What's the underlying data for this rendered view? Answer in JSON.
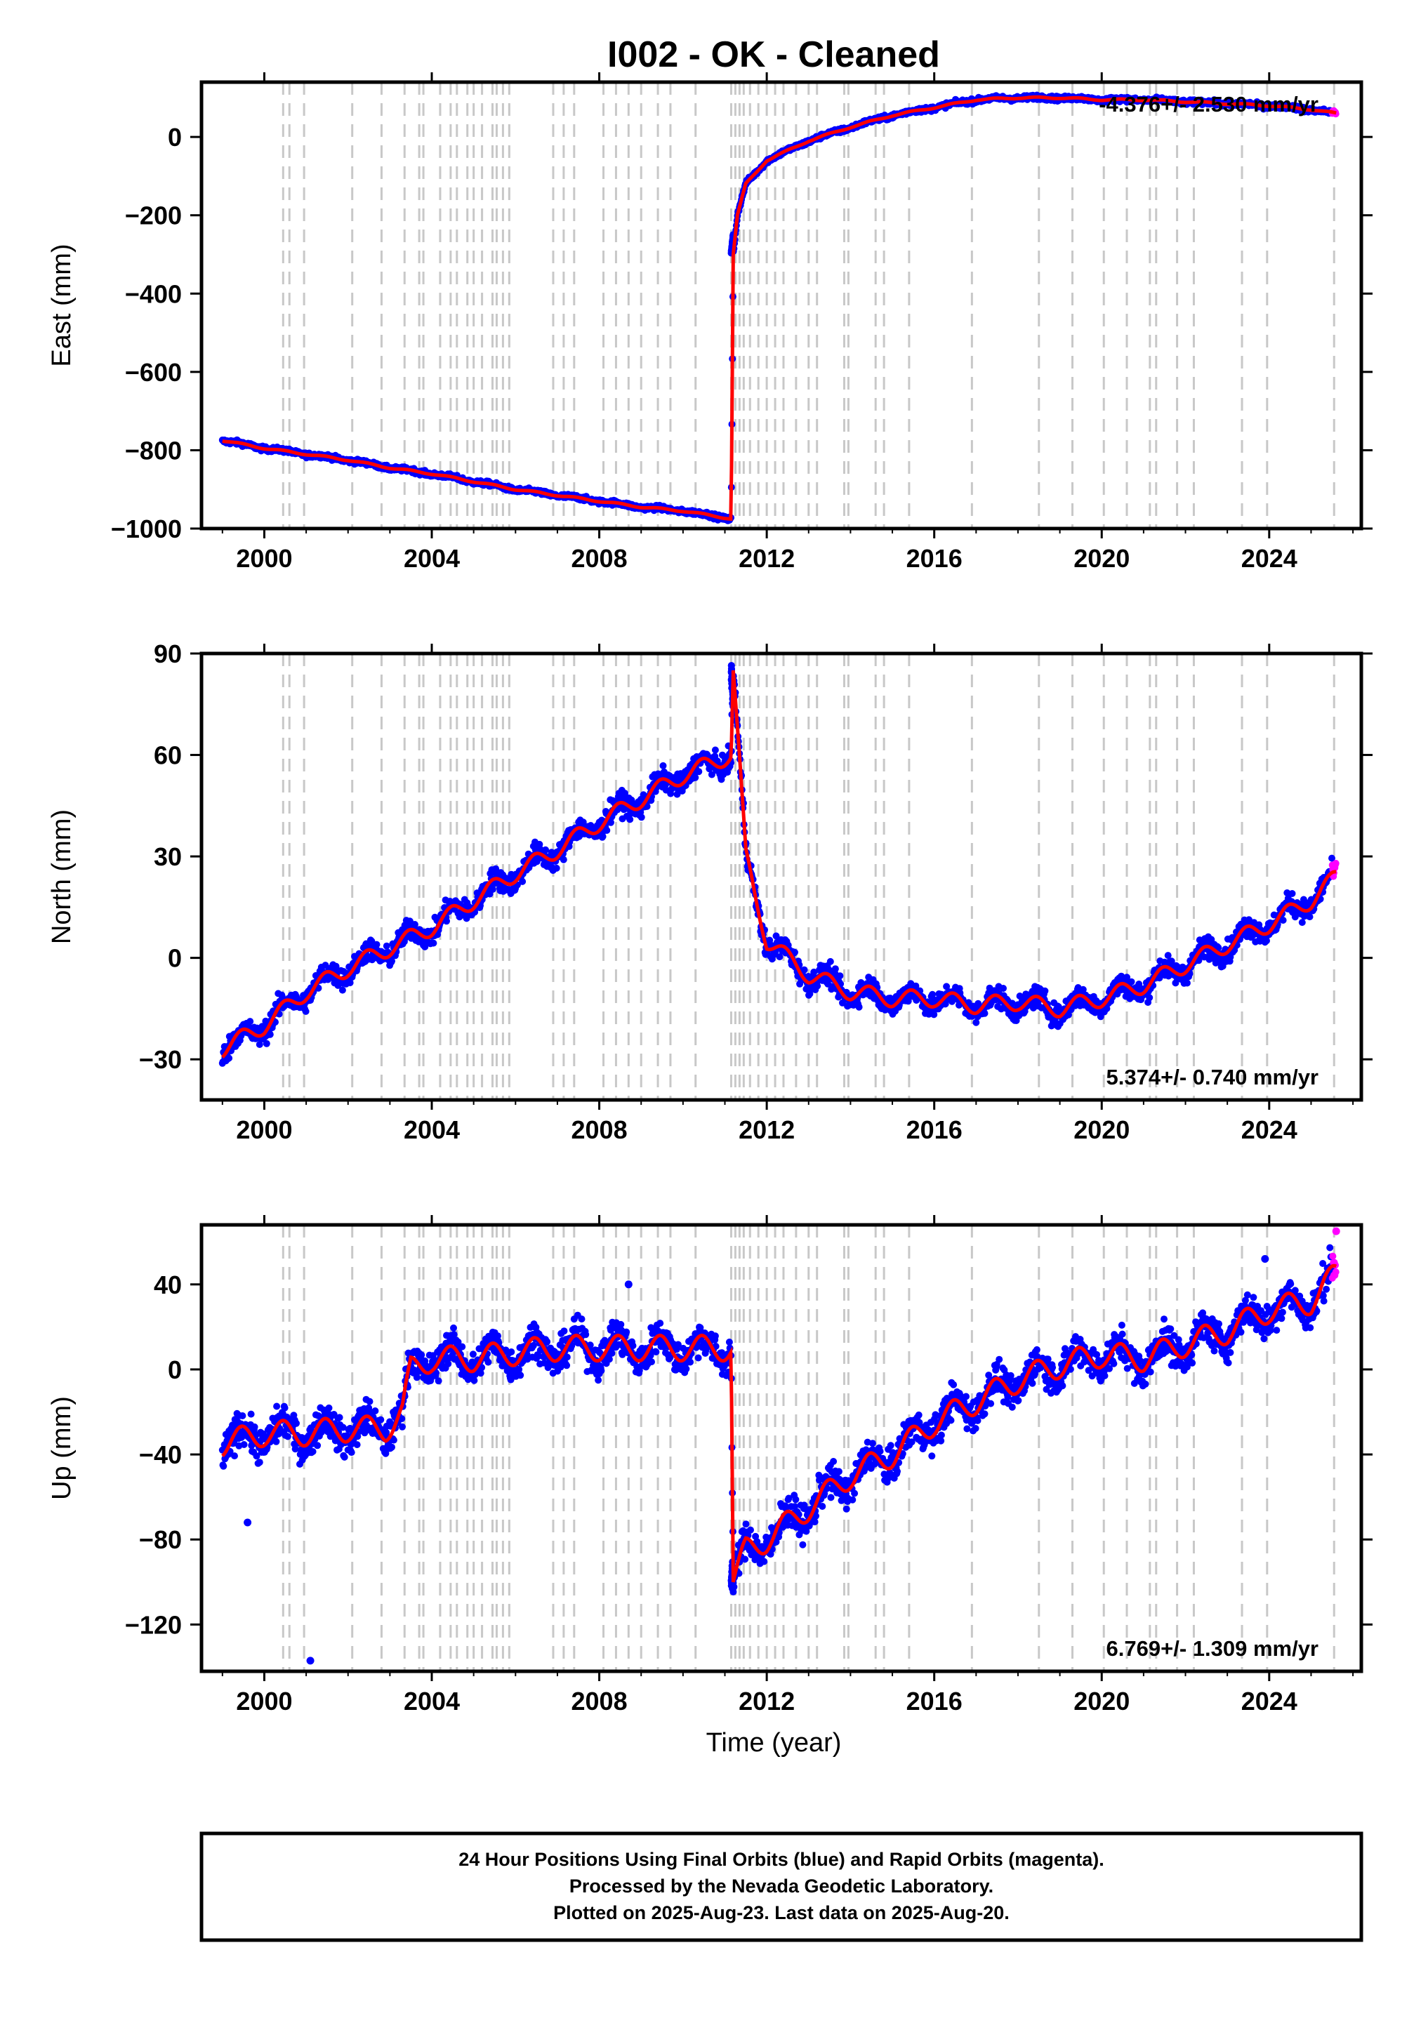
{
  "title": "I002  - OK - Cleaned",
  "xlabel": "Time (year)",
  "x_ticks": [
    "2000",
    "2004",
    "2008",
    "2012",
    "2016",
    "2020",
    "2024"
  ],
  "footer": {
    "line1": "24 Hour Positions Using Final Orbits (blue) and Rapid Orbits (magenta).",
    "line2": "Processed by the Nevada Geodetic Laboratory.",
    "line3": "Plotted on 2025-Aug-23. Last data on 2025-Aug-20."
  },
  "colors": {
    "final_orbits": "#0000ff",
    "rapid_orbits": "#ff00ff",
    "model": "#ff0000",
    "step_lines": "#c8c8c8"
  },
  "chart_data": [
    {
      "type": "scatter",
      "panel": "East",
      "ylabel": "East (mm)",
      "xlim": [
        1998.5,
        2026.2
      ],
      "ylim": [
        -1000,
        140
      ],
      "y_ticks": [
        0,
        -200,
        -400,
        -600,
        -800,
        -1000
      ],
      "y_tick_labels": [
        "0",
        "−200",
        "−400",
        "−600",
        "−800",
        "−1000"
      ],
      "rate_label": "-4.376+/- 2.530 mm/yr",
      "legend_position": "top-right",
      "series": [
        {
          "x": [
            1999.0,
            2000.0,
            2001.0,
            2002.0,
            2003.0,
            2004.0,
            2005.0,
            2006.0,
            2007.0,
            2008.0,
            2009.0,
            2010.0,
            2011.15,
            2011.2,
            2011.3,
            2011.5,
            2012.0,
            2013.0,
            2014.0,
            2015.0,
            2016.0,
            2017.0,
            2018.0,
            2019.0,
            2020.0,
            2021.0,
            2022.0,
            2023.0,
            2024.0,
            2025.0,
            2025.6
          ],
          "y": [
            -775,
            -795,
            -810,
            -825,
            -845,
            -860,
            -880,
            -900,
            -915,
            -930,
            -945,
            -955,
            -975,
            -300,
            -200,
            -120,
            -60,
            -10,
            25,
            55,
            75,
            95,
            100,
            100,
            95,
            95,
            90,
            85,
            80,
            70,
            60
          ]
        }
      ],
      "step_dates": [
        2000.45,
        2000.6,
        2000.95,
        2002.1,
        2002.8,
        2003.35,
        2003.7,
        2003.8,
        2004.2,
        2004.45,
        2004.6,
        2004.85,
        2005.0,
        2005.2,
        2005.45,
        2005.55,
        2005.7,
        2005.85,
        2006.9,
        2007.15,
        2007.4,
        2008.1,
        2008.4,
        2008.7,
        2009.0,
        2009.4,
        2009.7,
        2010.3,
        2011.15,
        2011.25,
        2011.35,
        2011.45,
        2011.6,
        2011.8,
        2012.0,
        2012.2,
        2012.4,
        2012.7,
        2013.0,
        2013.2,
        2013.85,
        2013.95,
        2014.6,
        2014.8,
        2015.4,
        2016.9,
        2018.5,
        2019.3,
        2020.05,
        2020.6,
        2021.15,
        2021.3,
        2021.8,
        2022.2,
        2023.35,
        2023.95,
        2025.55
      ]
    },
    {
      "type": "scatter",
      "panel": "North",
      "ylabel": "North (mm)",
      "xlim": [
        1998.5,
        2026.2
      ],
      "ylim": [
        -42,
        90
      ],
      "y_ticks": [
        90,
        60,
        30,
        0,
        -30
      ],
      "y_tick_labels": [
        "90",
        "60",
        "30",
        "0",
        "−30"
      ],
      "rate_label": "5.374+/- 0.740 mm/yr",
      "legend_position": "bottom-right",
      "series": [
        {
          "x": [
            1999.0,
            2000.0,
            2001.0,
            2002.0,
            2003.0,
            2004.0,
            2005.0,
            2006.0,
            2007.0,
            2008.0,
            2009.0,
            2010.0,
            2011.15,
            2011.2,
            2011.5,
            2012.0,
            2013.0,
            2014.0,
            2015.0,
            2016.0,
            2017.0,
            2018.0,
            2019.0,
            2020.0,
            2021.0,
            2022.0,
            2023.0,
            2024.0,
            2025.0,
            2025.6
          ],
          "y": [
            -27,
            -20,
            -10,
            -3,
            3,
            9,
            17,
            25,
            32,
            40,
            47,
            54,
            60,
            85,
            30,
            5,
            -5,
            -10,
            -12,
            -12,
            -14,
            -13,
            -15,
            -12,
            -8,
            -2,
            4,
            10,
            17,
            24
          ]
        }
      ],
      "step_dates": [
        2000.45,
        2000.6,
        2000.95,
        2002.1,
        2002.8,
        2003.35,
        2003.7,
        2003.8,
        2004.2,
        2004.45,
        2004.6,
        2004.85,
        2005.0,
        2005.2,
        2005.45,
        2005.55,
        2005.7,
        2005.85,
        2006.9,
        2007.15,
        2007.4,
        2008.1,
        2008.4,
        2008.7,
        2009.0,
        2009.4,
        2009.7,
        2010.3,
        2011.15,
        2011.25,
        2011.35,
        2011.45,
        2011.6,
        2011.8,
        2012.0,
        2012.2,
        2012.4,
        2012.7,
        2013.0,
        2013.2,
        2013.85,
        2013.95,
        2014.6,
        2014.8,
        2015.4,
        2016.9,
        2018.5,
        2019.3,
        2020.05,
        2020.6,
        2021.15,
        2021.3,
        2021.8,
        2022.2,
        2023.35,
        2023.95,
        2025.55
      ]
    },
    {
      "type": "scatter",
      "panel": "Up",
      "ylabel": "Up (mm)",
      "xlim": [
        1998.5,
        2026.2
      ],
      "ylim": [
        -142,
        68
      ],
      "y_ticks": [
        40,
        0,
        -40,
        -80,
        -120
      ],
      "y_tick_labels": [
        "40",
        "0",
        "−40",
        "−80",
        "−120"
      ],
      "rate_label": "6.769+/- 1.309 mm/yr",
      "legend_position": "bottom-right",
      "series": [
        {
          "x": [
            1999.0,
            2000.0,
            2001.0,
            2002.0,
            2002.9,
            2003.3,
            2003.5,
            2004.0,
            2005.0,
            2006.0,
            2007.0,
            2008.0,
            2009.0,
            2010.0,
            2011.15,
            2011.2,
            2011.5,
            2012.0,
            2013.0,
            2014.0,
            2015.0,
            2016.0,
            2017.0,
            2018.0,
            2019.0,
            2020.0,
            2021.0,
            2022.0,
            2023.0,
            2024.0,
            2025.0,
            2025.6
          ],
          "y": [
            -35,
            -30,
            -30,
            -28,
            -28,
            -20,
            0,
            5,
            5,
            8,
            10,
            10,
            10,
            10,
            10,
            -100,
            -85,
            -80,
            -65,
            -50,
            -40,
            -25,
            -15,
            -5,
            2,
            7,
            5,
            12,
            18,
            28,
            32,
            45
          ]
        }
      ],
      "outliers": [
        {
          "x": 1999.6,
          "y": -72
        },
        {
          "x": 2001.1,
          "y": -137
        },
        {
          "x": 2008.7,
          "y": 40
        },
        {
          "x": 2023.9,
          "y": 52
        },
        {
          "x": 2025.6,
          "y": 65
        }
      ],
      "step_dates": [
        2000.45,
        2000.6,
        2000.95,
        2002.1,
        2002.8,
        2003.35,
        2003.7,
        2003.8,
        2004.2,
        2004.45,
        2004.6,
        2004.85,
        2005.0,
        2005.2,
        2005.45,
        2005.55,
        2005.7,
        2005.85,
        2006.9,
        2007.15,
        2007.4,
        2008.1,
        2008.4,
        2008.7,
        2009.0,
        2009.4,
        2009.7,
        2010.3,
        2011.15,
        2011.25,
        2011.35,
        2011.45,
        2011.6,
        2011.8,
        2012.0,
        2012.2,
        2012.4,
        2012.7,
        2013.0,
        2013.2,
        2013.85,
        2013.95,
        2014.6,
        2014.8,
        2015.4,
        2016.9,
        2018.5,
        2019.3,
        2020.05,
        2020.6,
        2021.15,
        2021.3,
        2021.8,
        2022.2,
        2023.35,
        2023.95,
        2025.55
      ]
    }
  ]
}
